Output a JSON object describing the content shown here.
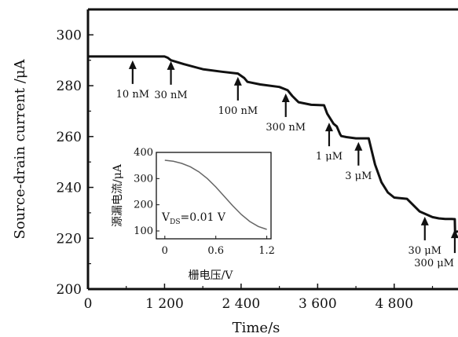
{
  "chart_data": {
    "type": "line",
    "title": "",
    "xlabel": "Time/s",
    "ylabel": "Source-drain current /μA",
    "xlim": [
      0,
      5800
    ],
    "ylim": [
      200,
      310
    ],
    "x_ticks": [
      {
        "value": 0,
        "label": "0"
      },
      {
        "value": 1200,
        "label": "1 200"
      },
      {
        "value": 2400,
        "label": "2 400"
      },
      {
        "value": 3600,
        "label": "3 600"
      },
      {
        "value": 4800,
        "label": "4 800"
      }
    ],
    "y_ticks": [
      {
        "value": 200,
        "label": "200"
      },
      {
        "value": 220,
        "label": "220"
      },
      {
        "value": 240,
        "label": "240"
      },
      {
        "value": 260,
        "label": "260"
      },
      {
        "value": 280,
        "label": "280"
      },
      {
        "value": 300,
        "label": "300"
      }
    ],
    "series": [
      {
        "x": [
          0,
          500,
          1000,
          1100,
          1150,
          1200,
          1250,
          1300,
          1500,
          1800,
          2100,
          2350,
          2450,
          2500,
          2700,
          3000,
          3130,
          3200,
          3300,
          3500,
          3700,
          3750,
          3850,
          3900,
          3950,
          3970,
          4050,
          4200,
          4400,
          4500,
          4600,
          4700,
          4800,
          5000,
          5200,
          5400,
          5500,
          5600,
          5700,
          5750,
          5755,
          5760,
          5800
        ],
        "y": [
          291.5,
          291.5,
          291.5,
          291.5,
          291.5,
          291.5,
          291,
          290,
          288.5,
          286.5,
          285.5,
          284.8,
          283,
          281.5,
          280.5,
          279.5,
          278.2,
          276,
          273.5,
          272.5,
          272.3,
          269,
          265,
          264,
          261,
          260.2,
          259.8,
          259.3,
          259.3,
          249,
          242,
          238,
          236,
          235.5,
          230.5,
          228.3,
          227.8,
          227.6,
          227.6,
          227.5,
          222,
          222.3,
          222.8
        ]
      }
    ],
    "annotations": [
      {
        "label": "10 nM",
        "x": 700,
        "y": 291.5
      },
      {
        "label": "30 nM",
        "x": 1300,
        "y": 291.2
      },
      {
        "label": "100 nM",
        "x": 2350,
        "y": 285
      },
      {
        "label": "300 nM",
        "x": 3100,
        "y": 278.5
      },
      {
        "label": "1 μM",
        "x": 3780,
        "y": 267
      },
      {
        "label": "3 μM",
        "x": 4240,
        "y": 259.4
      },
      {
        "label": "30 μM",
        "x": 5280,
        "y": 230
      },
      {
        "label": "300 μM",
        "x": 5750,
        "y": 225
      }
    ],
    "inset": {
      "type": "line",
      "xlabel": "栅电压/V",
      "ylabel": "源漏电流/μA",
      "xlim": [
        -0.1,
        1.25
      ],
      "ylim": [
        70,
        400
      ],
      "x_ticks": [
        {
          "value": 0,
          "label": "0"
        },
        {
          "value": 0.6,
          "label": "0.6"
        },
        {
          "value": 1.2,
          "label": "1.2"
        }
      ],
      "y_ticks": [
        {
          "value": 100,
          "label": "100"
        },
        {
          "value": 200,
          "label": "200"
        },
        {
          "value": 300,
          "label": "300"
        },
        {
          "value": 400,
          "label": "400"
        }
      ],
      "annotation": {
        "main": "V",
        "sub": "DS",
        "rest": "=0.01 V"
      },
      "series": [
        {
          "x": [
            0,
            0.1,
            0.2,
            0.3,
            0.4,
            0.5,
            0.6,
            0.7,
            0.8,
            0.9,
            1.0,
            1.1,
            1.2
          ],
          "y": [
            370,
            366,
            358,
            345,
            326,
            300,
            268,
            232,
            196,
            163,
            136,
            117,
            106
          ]
        }
      ]
    }
  }
}
